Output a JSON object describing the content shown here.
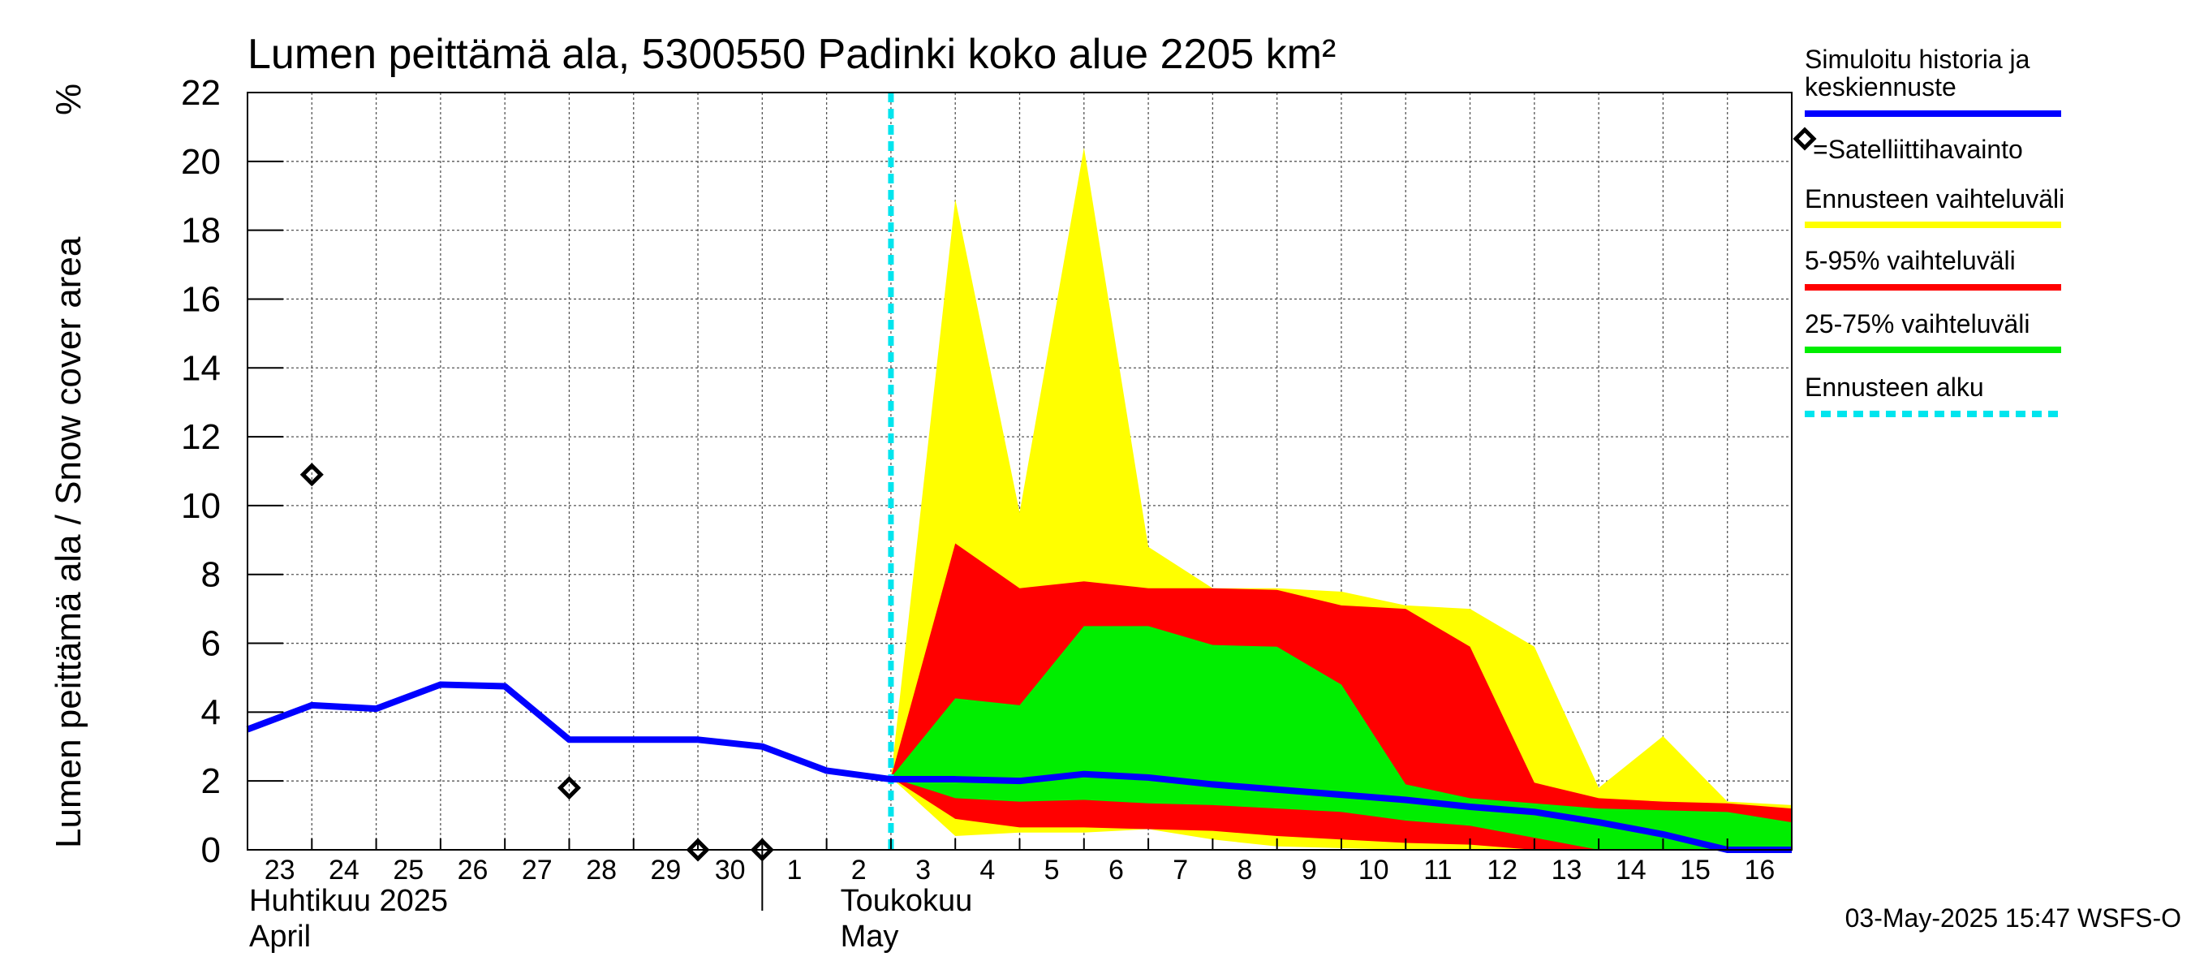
{
  "chart_data": {
    "type": "area",
    "title": "Lumen peittämä ala, 5300550 Padinki koko alue 2205 km²",
    "ylabel": "Lumen peittämä ala / Snow cover area",
    "yunit": "%",
    "ylim": [
      0,
      22
    ],
    "yticks": [
      0,
      2,
      4,
      6,
      8,
      10,
      12,
      14,
      16,
      18,
      20,
      22
    ],
    "x_day_labels": [
      "23",
      "24",
      "25",
      "26",
      "27",
      "28",
      "29",
      "30",
      "1",
      "2",
      "3",
      "4",
      "5",
      "6",
      "7",
      "8",
      "9",
      "10",
      "11",
      "12",
      "13",
      "14",
      "15",
      "16"
    ],
    "x_dates": [
      "2025-04-23",
      "2025-04-24",
      "2025-04-25",
      "2025-04-26",
      "2025-04-27",
      "2025-04-28",
      "2025-04-29",
      "2025-04-30",
      "2025-05-01",
      "2025-05-02",
      "2025-05-03",
      "2025-05-04",
      "2025-05-05",
      "2025-05-06",
      "2025-05-07",
      "2025-05-08",
      "2025-05-09",
      "2025-05-10",
      "2025-05-11",
      "2025-05-12",
      "2025-05-13",
      "2025-05-14",
      "2025-05-15",
      "2025-05-16",
      "2025-05-17"
    ],
    "months": [
      {
        "line1": "Huhtikuu  2025",
        "line2": "April",
        "start_date": "2025-04-23"
      },
      {
        "line1": "Toukokuu",
        "line2": "May",
        "start_date": "2025-05-02"
      }
    ],
    "forecast_start": "2025-05-03",
    "grid": true,
    "legend_position": "right",
    "timestamp": "03-May-2025 15:47 WSFS-O",
    "legend": [
      {
        "label": "Simuloitu historia ja keskiennuste",
        "color": "#0000ff",
        "style": "line"
      },
      {
        "label": "=Satelliittihavainto",
        "color": "#000000",
        "style": "diamond"
      },
      {
        "label": "Ennusteen vaihteluväli",
        "color": "#ffff00",
        "style": "line"
      },
      {
        "label": "5-95% vaihteluväli",
        "color": "#ff0000",
        "style": "line"
      },
      {
        "label": "25-75% vaihteluväli",
        "color": "#00ee00",
        "style": "line"
      },
      {
        "label": "Ennusteen alku",
        "color": "#00e5ee",
        "style": "dashed"
      }
    ],
    "series": [
      {
        "name": "Simuloitu historia ja keskiennuste",
        "color": "#0000ff",
        "x": [
          "2025-04-23",
          "2025-04-24",
          "2025-04-25",
          "2025-04-26",
          "2025-04-27",
          "2025-04-28",
          "2025-04-29",
          "2025-04-30",
          "2025-05-01",
          "2025-05-02",
          "2025-05-03",
          "2025-05-04",
          "2025-05-05",
          "2025-05-06",
          "2025-05-07",
          "2025-05-08",
          "2025-05-09",
          "2025-05-10",
          "2025-05-11",
          "2025-05-12",
          "2025-05-13",
          "2025-05-14",
          "2025-05-15",
          "2025-05-16",
          "2025-05-17"
        ],
        "y": [
          3.5,
          4.2,
          4.1,
          4.8,
          4.75,
          3.2,
          3.2,
          3.2,
          3.0,
          2.3,
          2.05,
          2.05,
          2.0,
          2.2,
          2.1,
          1.9,
          1.75,
          1.6,
          1.45,
          1.25,
          1.1,
          0.8,
          0.45,
          0.0,
          0.0
        ]
      },
      {
        "name": "=Satelliittihavainto",
        "color": "#000000",
        "x": [
          "2025-04-24",
          "2025-04-28",
          "2025-04-30",
          "2025-05-01"
        ],
        "y": [
          10.9,
          1.8,
          0.0,
          0.0
        ]
      },
      {
        "name": "Ennusteen vaihteluväli",
        "color": "#ffff00",
        "x": [
          "2025-05-03",
          "2025-05-04",
          "2025-05-05",
          "2025-05-06",
          "2025-05-07",
          "2025-05-08",
          "2025-05-09",
          "2025-05-10",
          "2025-05-11",
          "2025-05-12",
          "2025-05-13",
          "2025-05-14",
          "2025-05-15",
          "2025-05-16",
          "2025-05-17"
        ],
        "upper": [
          2.1,
          18.9,
          9.8,
          20.4,
          8.8,
          7.6,
          7.6,
          7.5,
          7.1,
          7.0,
          5.9,
          1.8,
          3.3,
          1.4,
          1.3
        ],
        "lower": [
          2.1,
          0.4,
          0.5,
          0.5,
          0.6,
          0.3,
          0.1,
          0.05,
          0.0,
          0.0,
          0.0,
          0.0,
          0.0,
          0.0,
          0.0
        ]
      },
      {
        "name": "5-95% vaihteluväli",
        "color": "#ff0000",
        "x": [
          "2025-05-03",
          "2025-05-04",
          "2025-05-05",
          "2025-05-06",
          "2025-05-07",
          "2025-05-08",
          "2025-05-09",
          "2025-05-10",
          "2025-05-11",
          "2025-05-12",
          "2025-05-13",
          "2025-05-14",
          "2025-05-15",
          "2025-05-16",
          "2025-05-17"
        ],
        "upper": [
          2.1,
          8.9,
          7.6,
          7.8,
          7.6,
          7.6,
          7.55,
          7.1,
          7.0,
          5.9,
          1.95,
          1.5,
          1.4,
          1.35,
          1.2
        ],
        "lower": [
          2.1,
          0.9,
          0.65,
          0.65,
          0.6,
          0.55,
          0.4,
          0.3,
          0.2,
          0.15,
          0.0,
          0.0,
          0.0,
          0.0,
          0.0
        ]
      },
      {
        "name": "25-75% vaihteluväli",
        "color": "#00ee00",
        "x": [
          "2025-05-03",
          "2025-05-04",
          "2025-05-05",
          "2025-05-06",
          "2025-05-07",
          "2025-05-08",
          "2025-05-09",
          "2025-05-10",
          "2025-05-11",
          "2025-05-12",
          "2025-05-13",
          "2025-05-14",
          "2025-05-15",
          "2025-05-16",
          "2025-05-17"
        ],
        "upper": [
          2.1,
          4.4,
          4.2,
          6.5,
          6.5,
          5.95,
          5.9,
          4.8,
          1.9,
          1.5,
          1.35,
          1.2,
          1.15,
          1.1,
          0.8
        ],
        "lower": [
          2.1,
          1.5,
          1.4,
          1.45,
          1.35,
          1.3,
          1.2,
          1.1,
          0.85,
          0.7,
          0.35,
          0.0,
          0.0,
          0.0,
          0.0
        ]
      }
    ]
  }
}
